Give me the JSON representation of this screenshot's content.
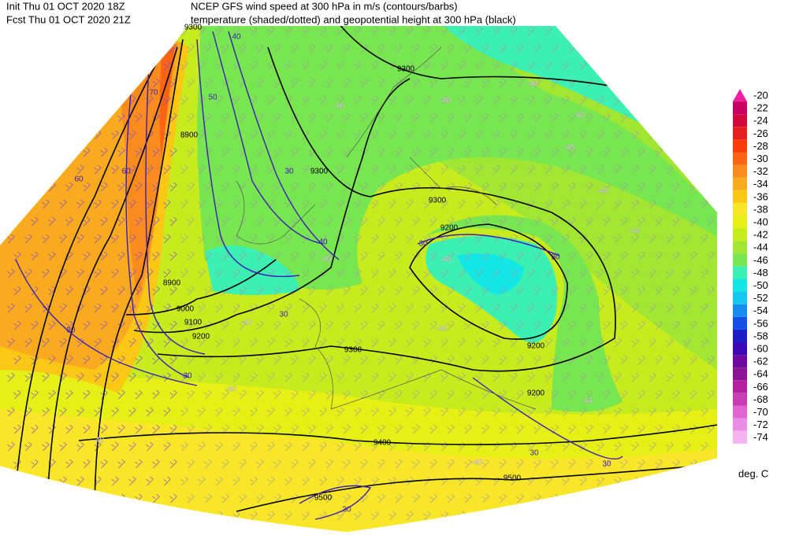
{
  "header": {
    "init": "Init  Thu 01 OCT 2020 18Z",
    "fcst": "Fcst Thu 01 OCT 2020 21Z",
    "title1": "NCEP GFS wind speed at 300 hPa in m/s (contours/barbs)",
    "title2": "temperature (shaded/dotted) and geopotential height at 300 hPa (black)"
  },
  "colorbar": {
    "unit": "deg. C",
    "levels": [
      {
        "value": -20,
        "color": "#ee1ea0"
      },
      {
        "value": -22,
        "color": "#c8005f"
      },
      {
        "value": -24,
        "color": "#d20a3c"
      },
      {
        "value": -26,
        "color": "#e61e1e"
      },
      {
        "value": -28,
        "color": "#fa3c0a"
      },
      {
        "value": -30,
        "color": "#fa6414"
      },
      {
        "value": -32,
        "color": "#fa8c1e"
      },
      {
        "value": -34,
        "color": "#faaa1e"
      },
      {
        "value": -36,
        "color": "#fac814"
      },
      {
        "value": -38,
        "color": "#fae628"
      },
      {
        "value": -40,
        "color": "#e6f014"
      },
      {
        "value": -42,
        "color": "#c8eb1e"
      },
      {
        "value": -44,
        "color": "#a0e632"
      },
      {
        "value": -46,
        "color": "#78e650"
      },
      {
        "value": -48,
        "color": "#3cf0b4"
      },
      {
        "value": -50,
        "color": "#14e6e6"
      },
      {
        "value": -52,
        "color": "#14c8f0"
      },
      {
        "value": -54,
        "color": "#148cf0"
      },
      {
        "value": -56,
        "color": "#1450e6"
      },
      {
        "value": -58,
        "color": "#1e1ec8"
      },
      {
        "value": -60,
        "color": "#3c0ab4"
      },
      {
        "value": -62,
        "color": "#6e0aa0"
      },
      {
        "value": -64,
        "color": "#8c1496"
      },
      {
        "value": -66,
        "color": "#b41ea0"
      },
      {
        "value": -68,
        "color": "#c83cb4"
      },
      {
        "value": -70,
        "color": "#e164d2"
      },
      {
        "value": -72,
        "color": "#eb8ce6"
      },
      {
        "value": -74,
        "color": "#f5b4f0"
      }
    ]
  },
  "map": {
    "height_labels": [
      "9300",
      "9300",
      "9300",
      "9300",
      "9300",
      "8900",
      "8900",
      "9000",
      "9100",
      "9200",
      "9200",
      "9200",
      "9200",
      "9400",
      "9500",
      "9500"
    ],
    "wind_labels": [
      "40",
      "50",
      "70",
      "60",
      "60",
      "30",
      "40",
      "30",
      "30",
      "30",
      "30",
      "30",
      "30",
      "30",
      "30"
    ],
    "temp_labels": [
      "-46",
      "-46",
      "-46",
      "-46",
      "-46",
      "-44",
      "-44",
      "-48",
      "-46",
      "-42",
      "-40",
      "-40",
      "-40",
      "-44",
      "-44"
    ]
  }
}
